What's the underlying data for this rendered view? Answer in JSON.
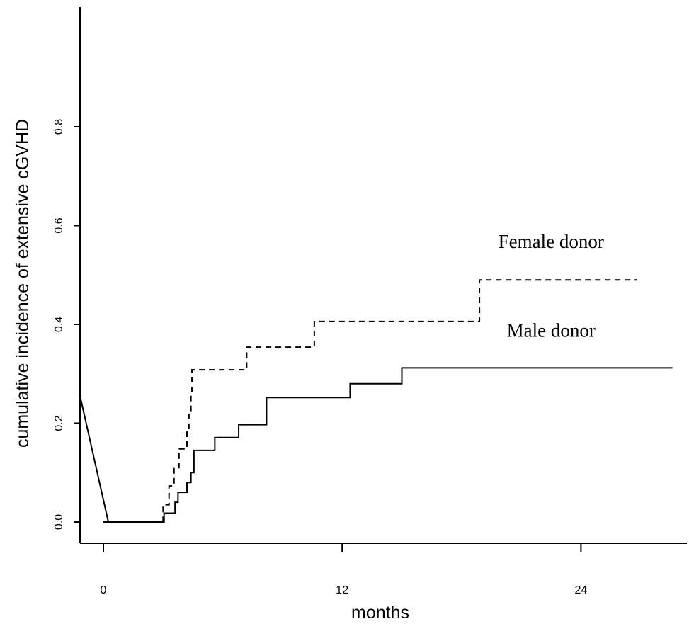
{
  "chart_data": {
    "type": "line",
    "title": "",
    "xlabel": "months",
    "ylabel": "cumulative incidence of extensive cGVHD",
    "xlim": [
      -1.2,
      29.2
    ],
    "ylim": [
      0.0,
      0.8
    ],
    "x_ticks": [
      0,
      12,
      24
    ],
    "x_tick_labels": [
      "0",
      "12",
      "24"
    ],
    "y_ticks": [
      0.0,
      0.2,
      0.4,
      0.6,
      0.8
    ],
    "y_tick_labels": [
      "0.0",
      "0.2",
      "0.4",
      "0.6",
      "0.8"
    ],
    "grid": false,
    "series": [
      {
        "name": "Female donor",
        "line_style": "dashed",
        "step": true,
        "x": [
          0.0,
          3.0,
          3.3,
          3.55,
          3.8,
          4.2,
          4.3,
          4.4,
          4.45,
          7.2,
          10.6,
          18.9,
          26.8
        ],
        "y": [
          0.0,
          0.035,
          0.073,
          0.11,
          0.148,
          0.185,
          0.222,
          0.26,
          0.308,
          0.354,
          0.406,
          0.49,
          0.49
        ]
      },
      {
        "name": "Male donor",
        "line_style": "solid",
        "step": true,
        "x": [
          0.0,
          3.05,
          3.6,
          3.75,
          4.2,
          4.4,
          4.55,
          5.6,
          6.8,
          8.2,
          12.4,
          15.0,
          28.6
        ],
        "y": [
          0.0,
          0.018,
          0.04,
          0.06,
          0.08,
          0.1,
          0.145,
          0.171,
          0.197,
          0.252,
          0.28,
          0.312,
          0.312
        ]
      }
    ],
    "extra_segment": {
      "x": [
        -1.2,
        0.25
      ],
      "y": [
        0.26,
        0.0
      ]
    },
    "annotations": [
      {
        "text": "Female donor",
        "x": 22.5,
        "y": 0.555
      },
      {
        "text": "Male donor",
        "x": 22.5,
        "y": 0.375
      }
    ]
  }
}
